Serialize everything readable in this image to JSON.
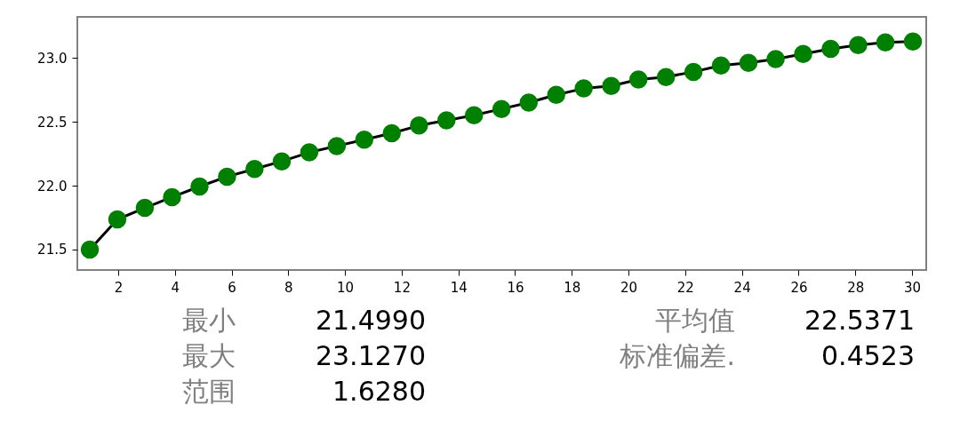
{
  "chart_data": {
    "type": "line",
    "x": [
      1,
      1.97,
      2.94,
      3.9,
      4.87,
      5.84,
      6.81,
      7.77,
      8.74,
      9.71,
      10.68,
      11.65,
      12.61,
      13.58,
      14.55,
      15.52,
      16.48,
      17.45,
      18.42,
      19.39,
      20.35,
      21.32,
      22.29,
      23.26,
      24.23,
      25.19,
      26.16,
      27.13,
      28.1,
      29.06,
      30.03
    ],
    "series": [
      {
        "color": "#008000",
        "values": [
          21.499,
          21.736,
          21.826,
          21.91,
          21.993,
          22.07,
          22.13,
          22.19,
          22.26,
          22.31,
          22.36,
          22.41,
          22.47,
          22.51,
          22.55,
          22.6,
          22.65,
          22.71,
          22.76,
          22.78,
          22.83,
          22.85,
          22.89,
          22.94,
          22.96,
          22.99,
          23.03,
          23.07,
          23.1,
          23.12,
          23.127
        ]
      }
    ],
    "xlim": [
      0.56,
      30.5
    ],
    "ylim": [
      21.34,
      23.32
    ],
    "xticks": [
      2,
      4,
      6,
      8,
      10,
      12,
      14,
      16,
      18,
      20,
      22,
      24,
      26,
      28,
      30
    ],
    "yticks": [
      {
        "value": 21.5,
        "label": "21.5"
      },
      {
        "value": 22,
        "label": "22.0"
      },
      {
        "value": 22.5,
        "label": "22.5"
      },
      {
        "value": 23,
        "label": "23.0"
      }
    ],
    "marker": "circle",
    "line_style": "solid",
    "grid": false,
    "annotations": [
      "最小",
      "21.4990",
      "最大",
      "23.1270",
      "范围",
      "1.6280",
      "平均值",
      "22.5371",
      "标准偏差.",
      "0.4523"
    ]
  }
}
